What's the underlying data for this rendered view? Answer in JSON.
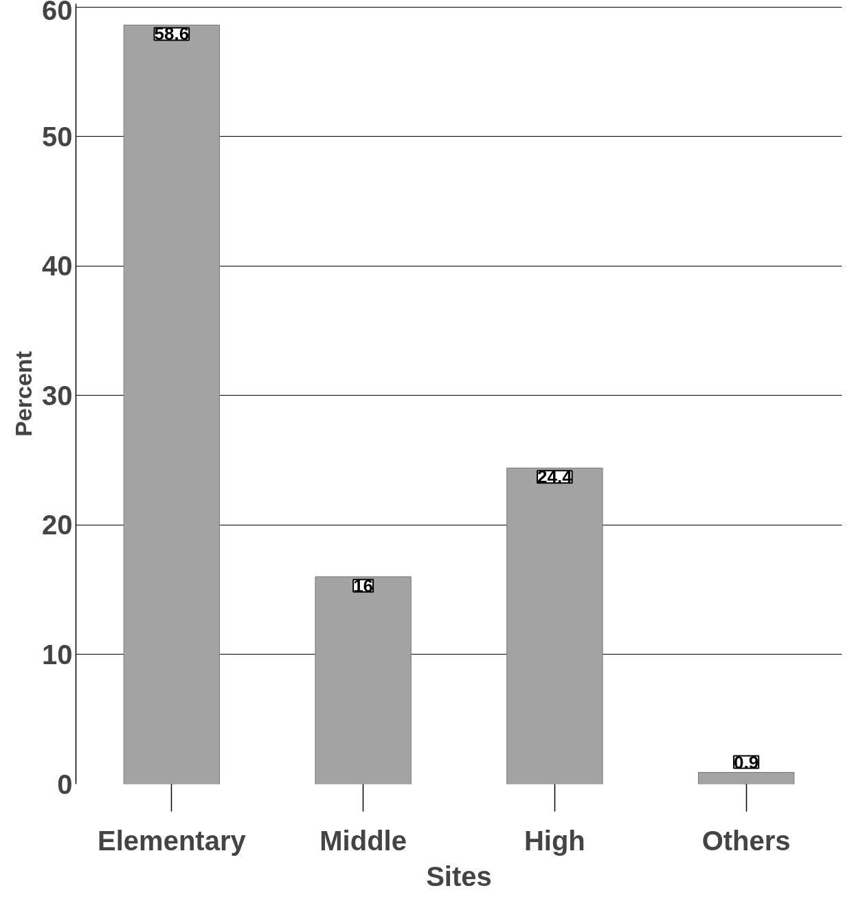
{
  "chart_data": {
    "type": "bar",
    "xlabel": "Sites",
    "ylabel": "Percent",
    "categories": [
      "Elementary",
      "Middle",
      "High",
      "Others"
    ],
    "values": [
      58.6,
      16,
      24.4,
      0.9
    ],
    "color": "#a3a3a3",
    "ylim": [
      0,
      60
    ],
    "yticks": [
      0,
      10,
      20,
      30,
      40,
      50,
      60
    ],
    "grid": "y",
    "data_labels": true
  }
}
